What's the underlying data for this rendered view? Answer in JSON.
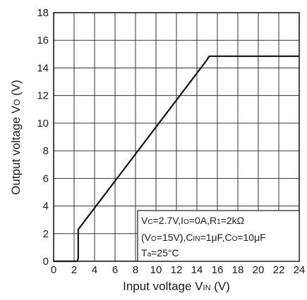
{
  "chart_data": {
    "type": "line",
    "xlabel": "Input voltage VIN (V)",
    "ylabel": "Output voltage VO (V)",
    "xlim": [
      0,
      24
    ],
    "ylim": [
      0,
      18
    ],
    "x_ticks": [
      "0",
      "2",
      "4",
      "6",
      "8",
      "10",
      "12",
      "14",
      "16",
      "18",
      "20",
      "22",
      "24"
    ],
    "y_ticks": [
      "0",
      "2",
      "4",
      "6",
      "8",
      "10",
      "12",
      "14",
      "16",
      "18"
    ],
    "grid": true,
    "series": [
      {
        "x": [
          0,
          2.3,
          2.4,
          2.4,
          14.9,
          15.2,
          24
        ],
        "y": [
          0,
          0,
          0.2,
          2.3,
          14.5,
          14.85,
          14.85
        ]
      }
    ],
    "annotation": [
      "VC=2.7V,IO=0A,R1=2kΩ",
      "(VO=15V),CIN=1μF,CO=10μF",
      "Ta=25°C"
    ]
  }
}
